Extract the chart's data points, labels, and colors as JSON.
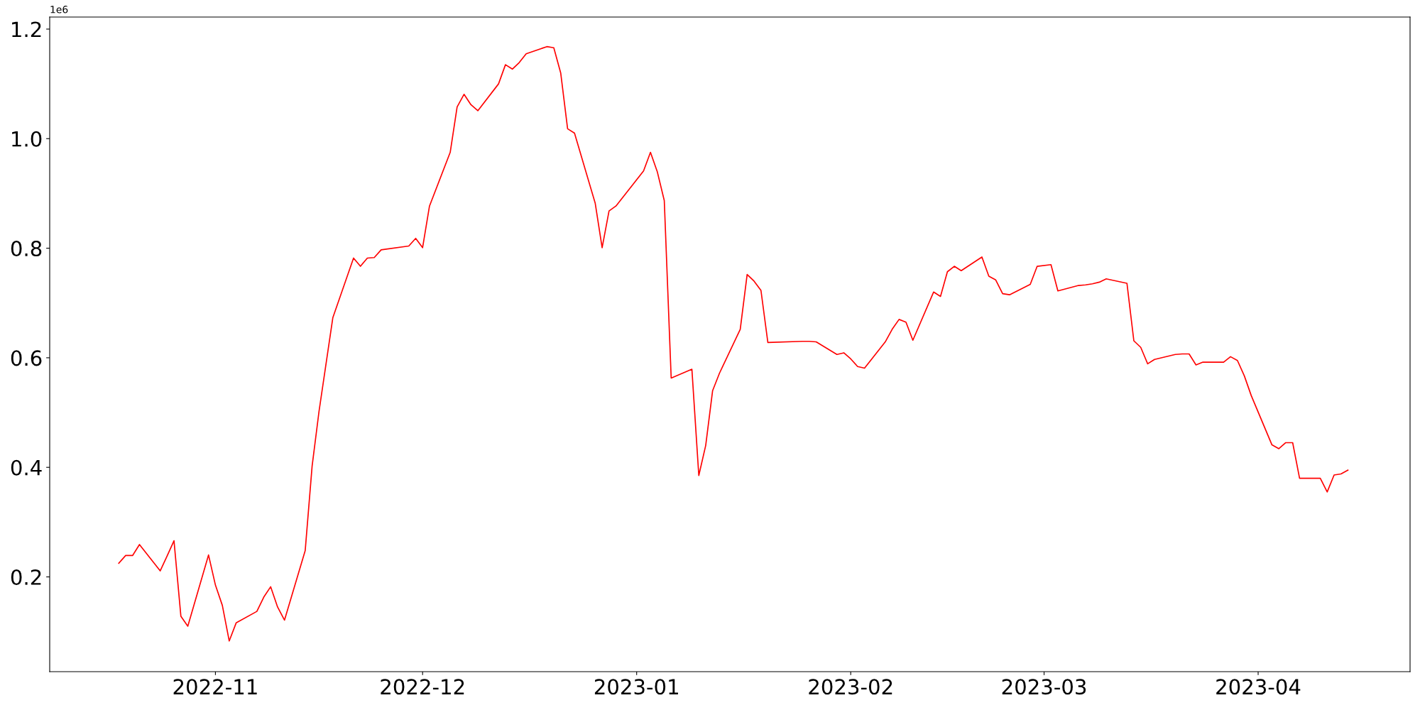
{
  "chart_data": {
    "type": "line",
    "x": [
      "2022-10-18",
      "2022-10-19",
      "2022-10-20",
      "2022-10-21",
      "2022-10-24",
      "2022-10-25",
      "2022-10-26",
      "2022-10-27",
      "2022-10-28",
      "2022-10-31",
      "2022-11-01",
      "2022-11-02",
      "2022-11-03",
      "2022-11-04",
      "2022-11-07",
      "2022-11-08",
      "2022-11-09",
      "2022-11-10",
      "2022-11-11",
      "2022-11-14",
      "2022-11-15",
      "2022-11-16",
      "2022-11-18",
      "2022-11-21",
      "2022-11-22",
      "2022-11-23",
      "2022-11-24",
      "2022-11-25",
      "2022-11-29",
      "2022-11-30",
      "2022-12-01",
      "2022-12-02",
      "2022-12-05",
      "2022-12-06",
      "2022-12-07",
      "2022-12-08",
      "2022-12-09",
      "2022-12-12",
      "2022-12-13",
      "2022-12-14",
      "2022-12-15",
      "2022-12-16",
      "2022-12-19",
      "2022-12-20",
      "2022-12-21",
      "2022-12-22",
      "2022-12-23",
      "2022-12-26",
      "2022-12-27",
      "2022-12-28",
      "2022-12-29",
      "2023-01-02",
      "2023-01-03",
      "2023-01-04",
      "2023-01-05",
      "2023-01-06",
      "2023-01-09",
      "2023-01-10",
      "2023-01-11",
      "2023-01-12",
      "2023-01-13",
      "2023-01-16",
      "2023-01-17",
      "2023-01-18",
      "2023-01-19",
      "2023-01-20",
      "2023-01-25",
      "2023-01-26",
      "2023-01-27",
      "2023-01-30",
      "2023-01-31",
      "2023-02-01",
      "2023-02-02",
      "2023-02-03",
      "2023-02-06",
      "2023-02-07",
      "2023-02-08",
      "2023-02-09",
      "2023-02-10",
      "2023-02-13",
      "2023-02-14",
      "2023-02-15",
      "2023-02-16",
      "2023-02-17",
      "2023-02-20",
      "2023-02-21",
      "2023-02-22",
      "2023-02-23",
      "2023-02-24",
      "2023-02-27",
      "2023-02-28",
      "2023-03-02",
      "2023-03-03",
      "2023-03-06",
      "2023-03-07",
      "2023-03-08",
      "2023-03-09",
      "2023-03-10",
      "2023-03-13",
      "2023-03-14",
      "2023-03-15",
      "2023-03-16",
      "2023-03-17",
      "2023-03-20",
      "2023-03-21",
      "2023-03-22",
      "2023-03-23",
      "2023-03-24",
      "2023-03-27",
      "2023-03-28",
      "2023-03-29",
      "2023-03-30",
      "2023-03-31",
      "2023-04-03",
      "2023-04-04",
      "2023-04-05",
      "2023-04-06",
      "2023-04-07",
      "2023-04-10",
      "2023-04-11",
      "2023-04-12",
      "2023-04-13",
      "2023-04-14"
    ],
    "series": [
      {
        "color": "#ff0000",
        "values": [
          0.225,
          0.239,
          0.239,
          0.259,
          0.211,
          0.238,
          0.266,
          0.128,
          0.11,
          0.24,
          0.185,
          0.148,
          0.083,
          0.116,
          0.137,
          0.163,
          0.182,
          0.145,
          0.121,
          0.248,
          0.402,
          0.502,
          0.673,
          0.782,
          0.767,
          0.782,
          0.783,
          0.797,
          0.804,
          0.818,
          0.801,
          0.877,
          0.975,
          1.058,
          1.081,
          1.062,
          1.051,
          1.1,
          1.135,
          1.127,
          1.139,
          1.155,
          1.168,
          1.166,
          1.12,
          1.018,
          1.01,
          0.882,
          0.801,
          0.868,
          0.877,
          0.941,
          0.975,
          0.939,
          0.887,
          0.563,
          0.579,
          0.385,
          0.44,
          0.54,
          0.572,
          0.652,
          0.752,
          0.74,
          0.723,
          0.628,
          0.63,
          0.63,
          0.629,
          0.606,
          0.609,
          0.598,
          0.584,
          0.581,
          0.629,
          0.652,
          0.67,
          0.665,
          0.632,
          0.72,
          0.712,
          0.757,
          0.767,
          0.759,
          0.784,
          0.749,
          0.742,
          0.717,
          0.715,
          0.734,
          0.767,
          0.77,
          0.722,
          0.732,
          0.733,
          0.735,
          0.738,
          0.744,
          0.736,
          0.631,
          0.619,
          0.589,
          0.597,
          0.606,
          0.607,
          0.607,
          0.587,
          0.592,
          0.592,
          0.602,
          0.595,
          0.567,
          0.531,
          0.441,
          0.434,
          0.445,
          0.445,
          0.38,
          0.38,
          0.355,
          0.386,
          0.388,
          0.395
        ]
      }
    ],
    "xlim": [
      "2022-10-08",
      "2023-04-23"
    ],
    "ylim": [
      0.027,
      1.222
    ],
    "xticks": [
      "2022-11",
      "2022-12",
      "2023-01",
      "2023-02",
      "2023-03",
      "2023-04"
    ],
    "yticks": [
      {
        "value": 0.2,
        "label": "0.2"
      },
      {
        "value": 0.4,
        "label": "0.4"
      },
      {
        "value": 0.6,
        "label": "0.6"
      },
      {
        "value": 0.8,
        "label": "0.8"
      },
      {
        "value": 1.0,
        "label": "1.0"
      },
      {
        "value": 1.2,
        "label": "1.2"
      }
    ],
    "annotations": [
      "1e6"
    ],
    "grid": false,
    "marker": "none",
    "line_style": "solid"
  }
}
